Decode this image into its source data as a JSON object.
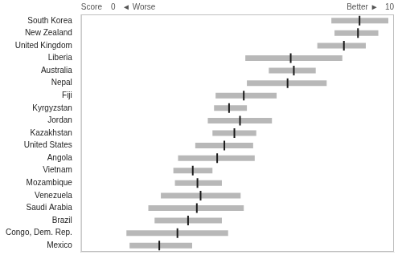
{
  "chart_data": {
    "type": "bar",
    "orientation": "horizontal",
    "categories": [
      "South Korea",
      "New Zealand",
      "United Kingdom",
      "Liberia",
      "Australia",
      "Nepal",
      "Fiji",
      "Kyrgyzstan",
      "Jordan",
      "Kazakhstan",
      "United States",
      "Angola",
      "Vietnam",
      "Mozambique",
      "Venezuela",
      "Saudi Arabia",
      "Brazil",
      "Congo, Dem. Rep.",
      "Mexico"
    ],
    "series": [
      {
        "type": "bar",
        "color": "#b8b8b8",
        "values": [
          [
            8.0,
            9.82
          ],
          [
            8.1,
            9.5
          ],
          [
            7.55,
            9.1
          ],
          [
            5.25,
            8.35
          ],
          [
            6.0,
            7.5
          ],
          [
            5.3,
            7.85
          ],
          [
            4.3,
            6.25
          ],
          [
            4.25,
            5.3
          ],
          [
            4.05,
            6.1
          ],
          [
            4.2,
            5.6
          ],
          [
            3.65,
            5.5
          ],
          [
            3.1,
            5.55
          ],
          [
            2.95,
            4.2
          ],
          [
            3.0,
            4.5
          ],
          [
            2.55,
            5.1
          ],
          [
            2.15,
            5.2
          ],
          [
            2.35,
            4.5
          ],
          [
            1.45,
            4.7
          ],
          [
            1.55,
            3.55
          ]
        ]
      },
      {
        "type": "scatter",
        "marker": "line",
        "color": "#1a1a1a",
        "values": [
          8.9,
          8.85,
          8.4,
          6.7,
          6.8,
          6.6,
          5.2,
          4.73,
          5.08,
          4.9,
          4.58,
          4.35,
          3.57,
          3.72,
          3.82,
          3.7,
          3.42,
          3.08,
          2.5
        ]
      }
    ],
    "xlim": [
      0,
      10
    ],
    "annotations": [
      "Score    0   ◄ Worse",
      "Better ►   10"
    ],
    "tick_labels": "y",
    "grid": false
  }
}
